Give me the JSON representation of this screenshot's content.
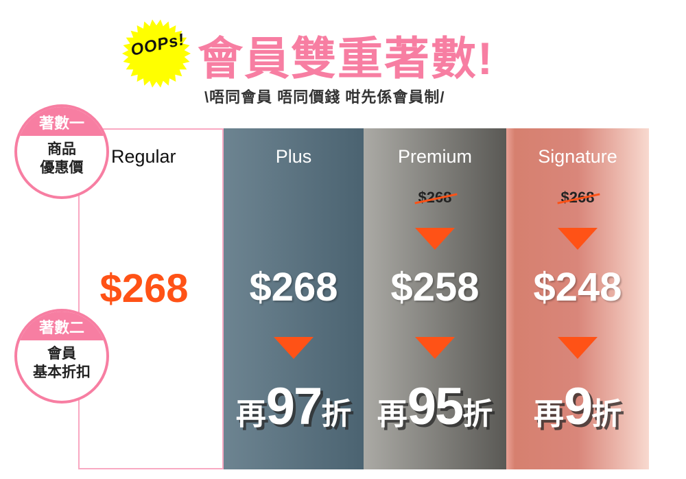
{
  "header": {
    "sticker": "OOPs!",
    "title": "會員雙重著數!",
    "subtitle": "\\唔同會員 唔同價錢 咁先係會員制/"
  },
  "badges": [
    {
      "heading": "著數一",
      "line1": "商品",
      "line2": "優惠價"
    },
    {
      "heading": "著數二",
      "line1": "會員",
      "line2": "基本折扣"
    }
  ],
  "tiers": [
    {
      "name": "Regular",
      "price": "$268"
    },
    {
      "name": "Plus",
      "price": "$268",
      "discount_prefix": "再",
      "discount_value": "97",
      "discount_suffix": "折"
    },
    {
      "name": "Premium",
      "original_price": "$268",
      "price": "$258",
      "discount_prefix": "再",
      "discount_value": "95",
      "discount_suffix": "折"
    },
    {
      "name": "Signature",
      "original_price": "$268",
      "price": "$248",
      "discount_prefix": "再",
      "discount_value": "9",
      "discount_suffix": "折"
    }
  ],
  "colors": {
    "accent_pink": "#f77ea2",
    "price_orange": "#ff5216",
    "sticker_yellow": "#ffff00"
  },
  "icons": {
    "arrow": "down-triangle-icon",
    "sticker": "starburst-icon"
  }
}
